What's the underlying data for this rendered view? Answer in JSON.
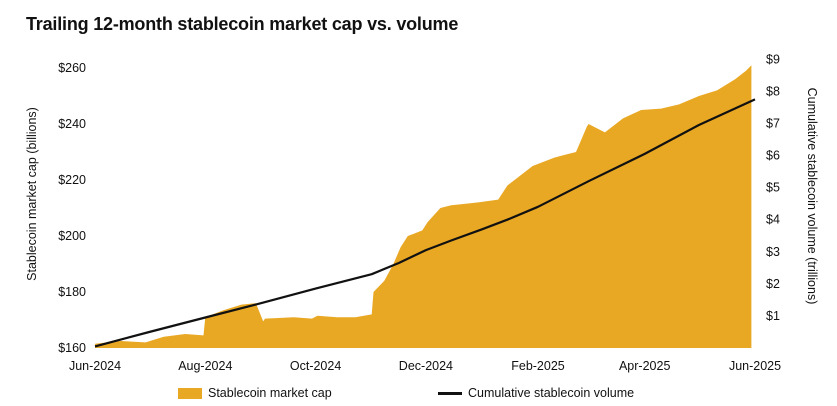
{
  "chart_data": {
    "type": "area+line",
    "title": "Trailing 12-month stablecoin market cap vs. volume",
    "left_axis": {
      "label": "Stablecoin market cap (billions)",
      "range": [
        160,
        270
      ],
      "ticks": [
        {
          "value": 160,
          "label": "$160"
        },
        {
          "value": 180,
          "label": "$180"
        },
        {
          "value": 200,
          "label": "$200"
        },
        {
          "value": 220,
          "label": "$220"
        },
        {
          "value": 240,
          "label": "$240"
        },
        {
          "value": 260,
          "label": "$260"
        }
      ]
    },
    "right_axis": {
      "label": "Cumulative stablecoin volume (trillions)",
      "range": [
        0,
        9.6
      ],
      "ticks": [
        {
          "value": 1,
          "label": "$1"
        },
        {
          "value": 2,
          "label": "$2"
        },
        {
          "value": 3,
          "label": "$3"
        },
        {
          "value": 4,
          "label": "$4"
        },
        {
          "value": 5,
          "label": "$5"
        },
        {
          "value": 6,
          "label": "$6"
        },
        {
          "value": 7,
          "label": "$7"
        },
        {
          "value": 8,
          "label": "$8"
        },
        {
          "value": 9,
          "label": "$9"
        }
      ]
    },
    "x_axis": {
      "range": [
        "2024-06-01",
        "2025-06-01"
      ],
      "ticks": [
        {
          "value": "2024-06-01",
          "label": "Jun-2024"
        },
        {
          "value": "2024-08-01",
          "label": "Aug-2024"
        },
        {
          "value": "2024-10-01",
          "label": "Oct-2024"
        },
        {
          "value": "2024-12-01",
          "label": "Dec-2024"
        },
        {
          "value": "2025-02-01",
          "label": "Feb-2025"
        },
        {
          "value": "2025-04-01",
          "label": "Apr-2025"
        },
        {
          "value": "2025-06-01",
          "label": "Jun-2025"
        }
      ]
    },
    "series": [
      {
        "name": "Stablecoin market cap",
        "kind": "area",
        "axis": "left",
        "color": "#E9A824",
        "x": [
          "2024-06-01",
          "2024-06-15",
          "2024-06-29",
          "2024-07-09",
          "2024-07-21",
          "2024-07-31",
          "2024-08-01",
          "2024-08-11",
          "2024-08-21",
          "2024-08-29",
          "2024-09-02",
          "2024-09-03",
          "2024-09-19",
          "2024-09-29",
          "2024-10-02",
          "2024-10-13",
          "2024-10-23",
          "2024-11-01",
          "2024-11-02",
          "2024-11-08",
          "2024-11-13",
          "2024-11-17",
          "2024-11-21",
          "2024-11-25",
          "2024-11-29",
          "2024-12-02",
          "2024-12-09",
          "2024-12-15",
          "2024-12-23",
          "2024-12-30",
          "2025-01-10",
          "2025-01-15",
          "2025-01-21",
          "2025-01-29",
          "2025-02-10",
          "2025-02-16",
          "2025-02-22",
          "2025-02-28",
          "2025-03-01",
          "2025-03-10",
          "2025-03-20",
          "2025-03-30",
          "2025-04-10",
          "2025-04-20",
          "2025-05-01",
          "2025-05-11",
          "2025-05-21",
          "2025-05-27",
          "2025-05-30"
        ],
        "values": [
          161.5,
          162.5,
          162.0,
          164.0,
          165.0,
          164.5,
          171.0,
          173.5,
          175.5,
          176.0,
          169.5,
          170.5,
          171.0,
          170.5,
          171.5,
          171.0,
          171.0,
          172.0,
          180.0,
          184.0,
          190.0,
          196.0,
          200.0,
          201.0,
          202.0,
          205.0,
          210.0,
          211.0,
          211.5,
          212.0,
          213.0,
          218.0,
          221.0,
          225.0,
          228.0,
          229.0,
          230.0,
          239.0,
          240.0,
          237.0,
          242.0,
          245.0,
          245.5,
          247.0,
          250.0,
          252.0,
          256.0,
          259.0,
          261.0
        ]
      },
      {
        "name": "Cumulative stablecoin volume",
        "kind": "line",
        "axis": "right",
        "color": "#111111",
        "x": [
          "2024-06-01",
          "2024-07-01",
          "2024-08-01",
          "2024-09-01",
          "2024-10-01",
          "2024-11-01",
          "2024-11-16",
          "2024-12-01",
          "2024-12-15",
          "2025-01-01",
          "2025-01-15",
          "2025-02-01",
          "2025-03-01",
          "2025-04-01",
          "2025-05-01",
          "2025-06-01"
        ],
        "values": [
          0.05,
          0.5,
          0.95,
          1.4,
          1.85,
          2.3,
          2.65,
          3.05,
          3.35,
          3.7,
          4.0,
          4.4,
          5.2,
          6.05,
          6.95,
          7.75
        ]
      }
    ],
    "legend": {
      "placement": "bottom",
      "items": [
        {
          "label": "Stablecoin market cap",
          "symbol": "area",
          "color": "#E9A824"
        },
        {
          "label": "Cumulative stablecoin volume",
          "symbol": "line",
          "color": "#111111"
        }
      ]
    },
    "grid": false
  }
}
